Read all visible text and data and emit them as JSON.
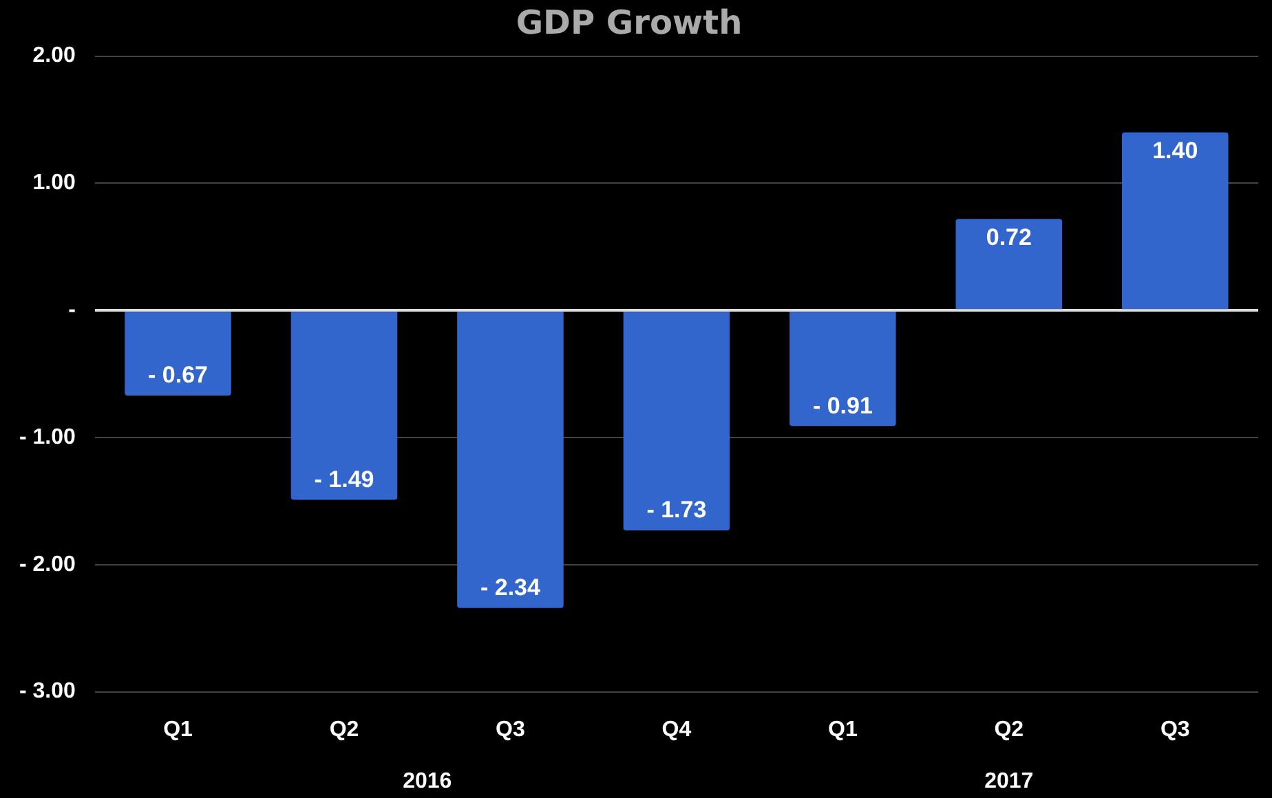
{
  "chart_data": {
    "type": "bar",
    "title": "GDP Growth",
    "categories": [
      "Q1",
      "Q2",
      "Q3",
      "Q4",
      "Q1",
      "Q2",
      "Q3"
    ],
    "values": [
      -0.67,
      -1.49,
      -2.34,
      -1.73,
      -0.91,
      0.72,
      1.4
    ],
    "value_labels": [
      "- 0.67",
      "- 1.49",
      "- 2.34",
      "- 1.73",
      "- 0.91",
      "0.72",
      "1.40"
    ],
    "color": "#3366cc",
    "ylim": [
      -3,
      2
    ],
    "yticks": [
      {
        "value": 2,
        "label": "2.00"
      },
      {
        "value": 1,
        "label": "1.00"
      },
      {
        "value": 0,
        "label": "-"
      },
      {
        "value": -1,
        "label": "- 1.00"
      },
      {
        "value": -2,
        "label": "- 2.00"
      },
      {
        "value": -3,
        "label": "- 3.00"
      }
    ],
    "grid": "y",
    "annotations": [
      "2016",
      "2017"
    ]
  }
}
